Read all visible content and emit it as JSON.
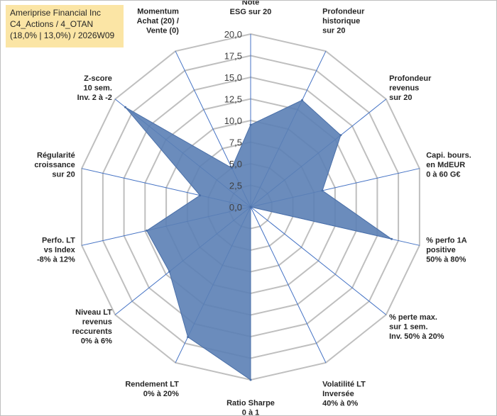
{
  "header": {
    "line1": "Ameriprise Financial Inc",
    "line2": "C4_Actions / 4_OTAN",
    "line3": "(18,0% | 13,0%) / 2026W09"
  },
  "colors": {
    "fill": "#5b7fb5",
    "outline": "#4a6fa8",
    "spoke": "#4472c4",
    "grid": "#bfbfbf",
    "header_bg": "#fbe5a5"
  },
  "chart_data": {
    "type": "radar",
    "rmin": 0,
    "rmax": 20,
    "tick_step": 2.5,
    "tick_labels": [
      "0,0",
      "2,5",
      "5,0",
      "7,5",
      "10,0",
      "12,5",
      "15,0",
      "17,5",
      "20,0"
    ],
    "categories": [
      [
        "Note",
        "ESG sur 20"
      ],
      [
        "Profondeur",
        "historique",
        "sur 20"
      ],
      [
        "Profondeur",
        "revenus",
        "sur 20"
      ],
      [
        "Capi. bours.",
        "en MdEUR",
        "0 à 60 G€"
      ],
      [
        "% perfo 1A",
        "positive",
        "50% à 80%"
      ],
      [
        "% perte max.",
        "sur 1 sem.",
        "Inv. 50% à 20%"
      ],
      [
        "Volatilité LT",
        "Inversée",
        "40% à 0%"
      ],
      [
        "Ratio Sharpe",
        "0 à 1"
      ],
      [
        "Rendement LT",
        "0% à 20%"
      ],
      [
        "Niveau LT",
        "revenus",
        "reccurents",
        "0% à 6%"
      ],
      [
        "Perfo. LT",
        "vs Index",
        "-8% à 12%"
      ],
      [
        "Régularité",
        "croissance",
        "sur 20"
      ],
      [
        "Z-score",
        "10 sem.",
        "Inv. 2 à -2"
      ],
      [
        "Momentum",
        "Achat (20) /",
        "Vente (0)"
      ]
    ],
    "series": [
      {
        "values": [
          9.5,
          13.7,
          13.3,
          8.5,
          16.7,
          0.0,
          0.0,
          20.0,
          16.7,
          12.0,
          12.3,
          6.0,
          18.5,
          5.0
        ]
      }
    ],
    "grid": true,
    "legend": "none"
  }
}
